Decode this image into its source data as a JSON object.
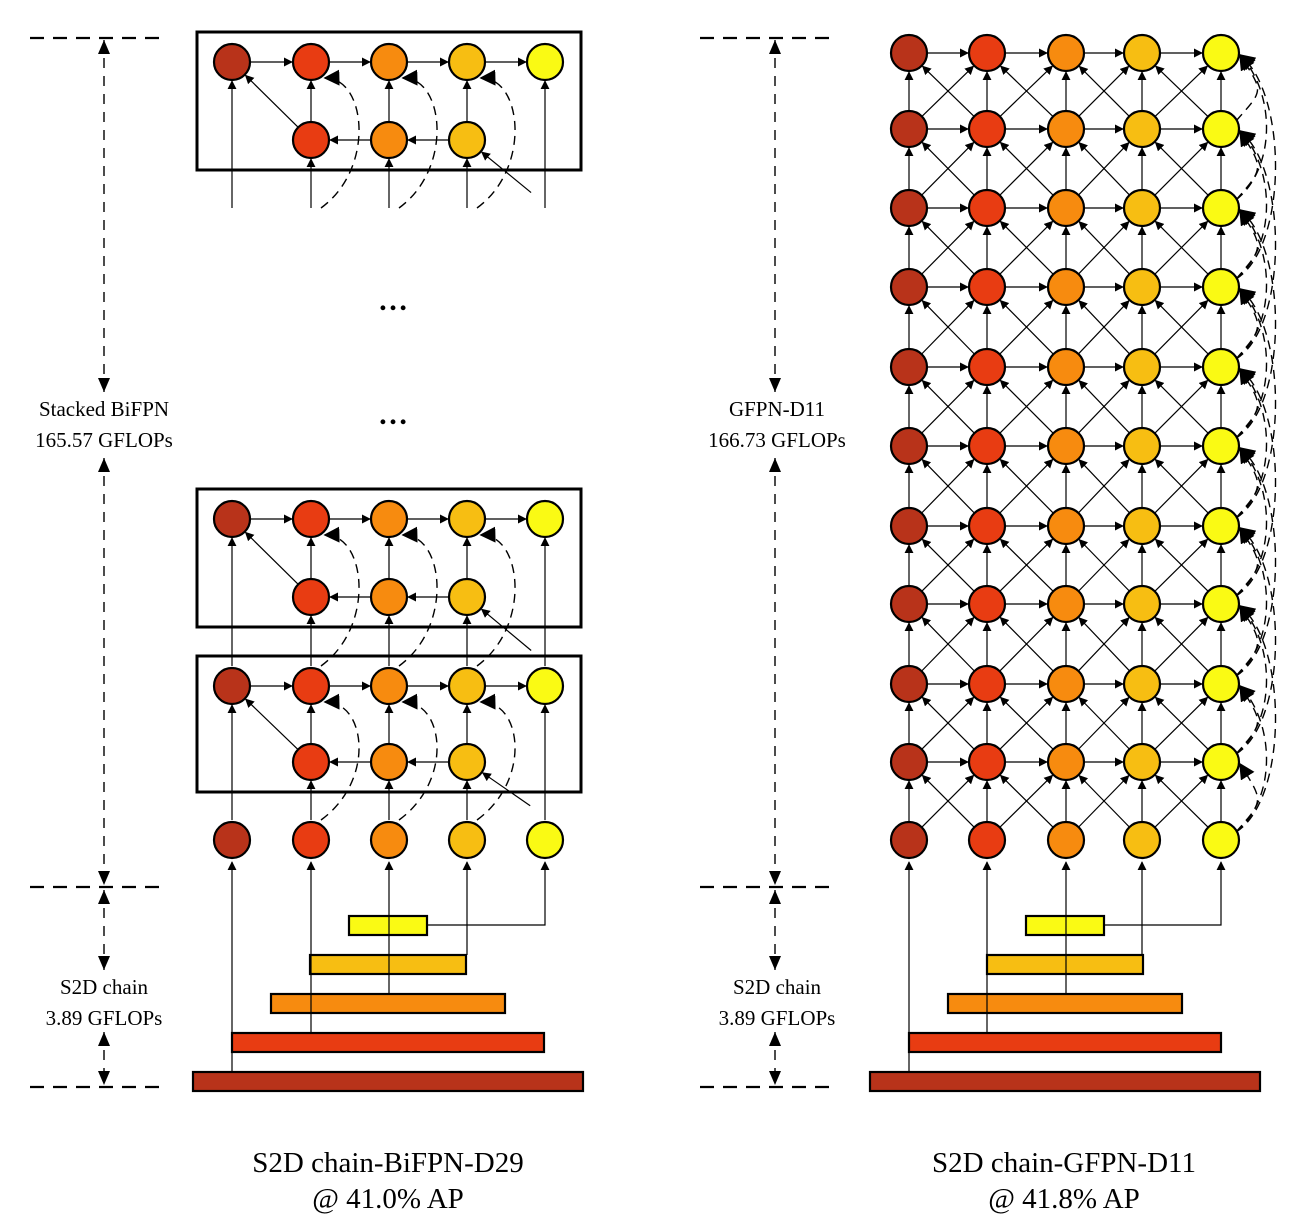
{
  "colors": {
    "level_1": "#b8331a",
    "level_2": "#e83c12",
    "level_3": "#f78b0f",
    "level_4": "#f7be12",
    "level_5": "#fafa14",
    "stroke": "#000000"
  },
  "left_panel": {
    "neck_label": {
      "line1": "Stacked BiFPN",
      "line2": "165.57 GFLOPs"
    },
    "backbone_label": {
      "line1": "S2D chain",
      "line2": "3.89 GFLOPs"
    },
    "ellipsis_1": "…",
    "ellipsis_2": "…",
    "caption": {
      "line1": "S2D chain-BiFPN-D29",
      "line2": "@ 41.0% AP"
    }
  },
  "right_panel": {
    "neck_label": {
      "line1": "GFPN-D11",
      "line2": "166.73 GFLOPs"
    },
    "backbone_label": {
      "line1": "S2D chain",
      "line2": "3.89 GFLOPs"
    },
    "caption": {
      "line1": "S2D chain-GFPN-D11",
      "line2": "@ 41.8% AP"
    }
  }
}
